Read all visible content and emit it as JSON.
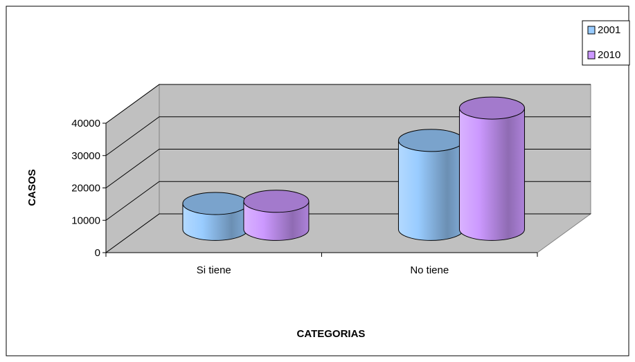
{
  "chart_data": {
    "type": "bar",
    "style": "3d-cylinder",
    "categories": [
      "Si tiene",
      "No tiene"
    ],
    "series": [
      {
        "name": "2001",
        "values": [
          8000,
          27500
        ],
        "color": "#99CCFF"
      },
      {
        "name": "2010",
        "values": [
          8700,
          37500
        ],
        "color": "#CC99FF"
      }
    ],
    "xlabel": "CATEGORIAS",
    "ylabel": "CASOS",
    "ylim": [
      0,
      40000
    ],
    "yticks": [
      0,
      10000,
      20000,
      30000,
      40000
    ],
    "grid": true,
    "legend": "top-right",
    "colors": {
      "wall": "#C0C0C0",
      "floor": "#C0C0C0",
      "grid": "#000000"
    }
  }
}
